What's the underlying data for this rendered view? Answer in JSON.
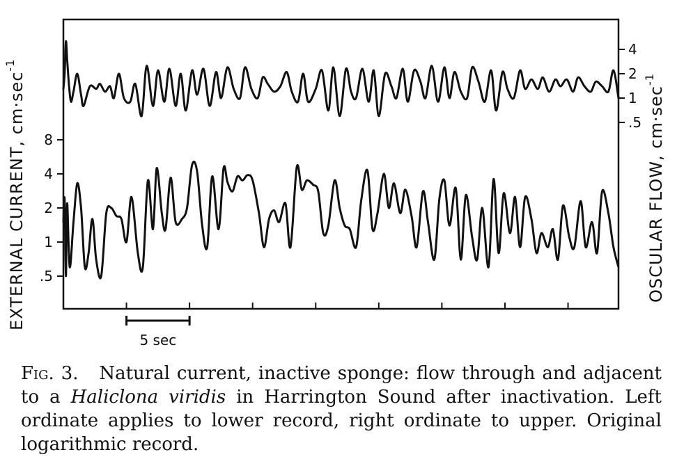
{
  "chart_data": {
    "type": "line",
    "x_unit": "sec",
    "x_range": [
      0,
      44
    ],
    "scale_bar": {
      "label": "5 sec",
      "seconds": 5
    },
    "y_left": {
      "label": "EXTERNAL CURRENT, cm·sec",
      "exponent": "-1",
      "scale": "log",
      "range": [
        0.3,
        16
      ],
      "ticks": [
        {
          "value": 0.5,
          "label": ".5"
        },
        {
          "value": 1,
          "label": "1"
        },
        {
          "value": 2,
          "label": "2"
        },
        {
          "value": 4,
          "label": "4"
        },
        {
          "value": 8,
          "label": "8"
        }
      ],
      "applies_to": "lower record"
    },
    "y_right": {
      "label": "OSCULAR FLOW, cm·sec",
      "exponent": "-1",
      "scale": "log",
      "range": [
        0.3,
        6
      ],
      "ticks": [
        {
          "value": 0.5,
          "label": ".5"
        },
        {
          "value": 1,
          "label": "1"
        },
        {
          "value": 2,
          "label": "2"
        },
        {
          "value": 4,
          "label": "4"
        }
      ],
      "applies_to": "upper record"
    },
    "series": [
      {
        "axis": "right",
        "x": [
          0,
          0.1,
          0.2,
          0.3,
          0.45,
          0.6,
          0.8,
          1.1,
          1.4,
          1.6,
          2.1,
          2.6,
          2.9,
          3.3,
          3.7,
          4.0,
          4.4,
          4.8,
          5.3,
          5.7,
          6.2,
          6.6,
          7.1,
          7.5,
          8.0,
          8.4,
          8.9,
          9.3,
          9.7,
          10.2,
          10.6,
          11.1,
          11.6,
          12.1,
          12.5,
          13.0,
          13.5,
          14.0,
          14.4,
          14.9,
          15.4,
          15.8,
          16.2,
          16.7,
          17.2,
          17.7,
          18.1,
          18.6,
          19.0,
          19.4,
          20.0,
          20.5,
          21.0,
          21.4,
          21.9,
          22.4,
          22.8,
          23.2,
          23.7,
          24.2,
          24.6,
          25.0,
          25.5,
          26.0,
          26.4,
          26.9,
          27.3,
          27.8,
          28.3,
          28.7,
          29.2,
          29.7,
          30.2,
          30.6,
          31.0,
          31.5,
          32.0,
          32.4,
          32.9,
          33.4,
          33.9,
          34.3,
          34.8,
          35.2,
          35.7,
          36.2,
          36.6,
          37.1,
          37.6,
          38.0,
          38.5,
          39.0,
          39.4,
          39.9,
          40.4,
          40.8,
          41.3,
          41.8,
          42.2,
          42.7,
          43.2,
          43.6,
          44.0
        ],
        "y": [
          1.3,
          2.0,
          5.0,
          3.0,
          1.4,
          0.9,
          1.2,
          2.0,
          1.1,
          0.8,
          1.4,
          1.3,
          1.5,
          1.2,
          1.4,
          1.0,
          2.0,
          1.0,
          0.9,
          1.5,
          0.6,
          2.5,
          0.8,
          2.2,
          0.9,
          2.3,
          0.8,
          2.0,
          0.7,
          2.2,
          1.1,
          2.3,
          0.8,
          2.1,
          1.0,
          2.4,
          1.3,
          1.0,
          2.4,
          1.3,
          1.0,
          1.8,
          1.5,
          1.2,
          1.4,
          2.1,
          1.2,
          0.9,
          2.0,
          0.9,
          1.3,
          2.2,
          0.7,
          2.4,
          0.6,
          2.3,
          1.2,
          1.0,
          2.3,
          0.9,
          2.2,
          0.6,
          2.0,
          1.4,
          1.0,
          2.3,
          0.9,
          2.2,
          1.6,
          1.0,
          2.5,
          0.9,
          2.4,
          1.0,
          2.1,
          1.2,
          1.0,
          2.4,
          1.6,
          0.9,
          2.2,
          0.7,
          2.1,
          1.3,
          1.0,
          2.2,
          1.3,
          1.7,
          1.3,
          1.8,
          1.2,
          1.7,
          1.4,
          1.7,
          1.2,
          1.8,
          1.4,
          1.2,
          1.6,
          1.4,
          1.2,
          2.2,
          1.0
        ]
      },
      {
        "axis": "left",
        "x": [
          0,
          0.1,
          0.2,
          0.3,
          0.5,
          0.8,
          1.1,
          1.4,
          1.7,
          2.0,
          2.3,
          2.6,
          3.0,
          3.4,
          3.8,
          4.2,
          4.6,
          5.0,
          5.4,
          5.9,
          6.3,
          6.7,
          7.1,
          7.4,
          7.8,
          8.1,
          8.5,
          8.9,
          9.4,
          9.8,
          10.2,
          10.6,
          11.0,
          11.4,
          11.8,
          12.3,
          12.7,
          13.0,
          13.4,
          13.8,
          14.2,
          14.6,
          15.0,
          15.5,
          15.9,
          16.3,
          16.7,
          17.1,
          17.6,
          18.0,
          18.5,
          18.9,
          19.3,
          19.8,
          20.2,
          20.6,
          21.0,
          21.5,
          21.9,
          22.3,
          22.7,
          23.2,
          23.6,
          24.1,
          24.5,
          24.9,
          25.4,
          25.8,
          26.2,
          26.7,
          27.1,
          27.6,
          28.0,
          28.5,
          28.9,
          29.4,
          29.8,
          30.2,
          30.6,
          31.1,
          31.5,
          31.9,
          32.4,
          32.8,
          33.2,
          33.7,
          34.1,
          34.5,
          34.9,
          35.4,
          35.8,
          36.2,
          36.6,
          37.1,
          37.5,
          37.9,
          38.4,
          38.8,
          39.2,
          39.6,
          40.1,
          40.5,
          41.0,
          41.4,
          41.9,
          42.3,
          42.7,
          43.2,
          43.6,
          44.0
        ],
        "y": [
          1.5,
          2.4,
          0.5,
          2.2,
          0.6,
          1.5,
          3.3,
          2.0,
          0.6,
          0.8,
          1.6,
          0.7,
          0.5,
          1.8,
          2.0,
          1.7,
          1.6,
          1.0,
          2.5,
          0.8,
          0.6,
          3.5,
          1.3,
          4.5,
          1.8,
          1.3,
          3.7,
          1.5,
          1.6,
          2.0,
          4.8,
          4.2,
          1.4,
          0.9,
          3.8,
          1.3,
          4.5,
          3.4,
          2.8,
          3.8,
          3.5,
          3.9,
          3.5,
          1.8,
          0.9,
          1.6,
          1.9,
          1.5,
          2.2,
          0.9,
          4.6,
          2.9,
          3.5,
          3.2,
          2.8,
          1.2,
          1.4,
          3.5,
          2.0,
          1.4,
          1.3,
          0.9,
          2.3,
          4.3,
          1.3,
          1.8,
          4.0,
          2.0,
          3.3,
          1.8,
          2.9,
          1.7,
          0.9,
          2.8,
          1.5,
          0.7,
          2.4,
          3.5,
          1.4,
          3.0,
          0.7,
          2.6,
          1.1,
          0.7,
          2.0,
          0.6,
          3.6,
          0.8,
          2.7,
          1.2,
          2.5,
          0.9,
          2.5,
          1.6,
          0.8,
          1.2,
          0.9,
          1.3,
          0.7,
          2.1,
          1.1,
          0.9,
          2.3,
          0.9,
          1.5,
          0.8,
          2.8,
          1.8,
          0.9,
          0.6
        ]
      }
    ]
  },
  "caption": {
    "label": "Fig. 3.",
    "text_before": "Natural current, inactive sponge: flow through and adjacent to a ",
    "species": "Haliclona viridis",
    "text_after": " in Harrington Sound after inactivation. Left ordinate applies to lower record, right ordinate to upper. Original logarithmic record."
  }
}
